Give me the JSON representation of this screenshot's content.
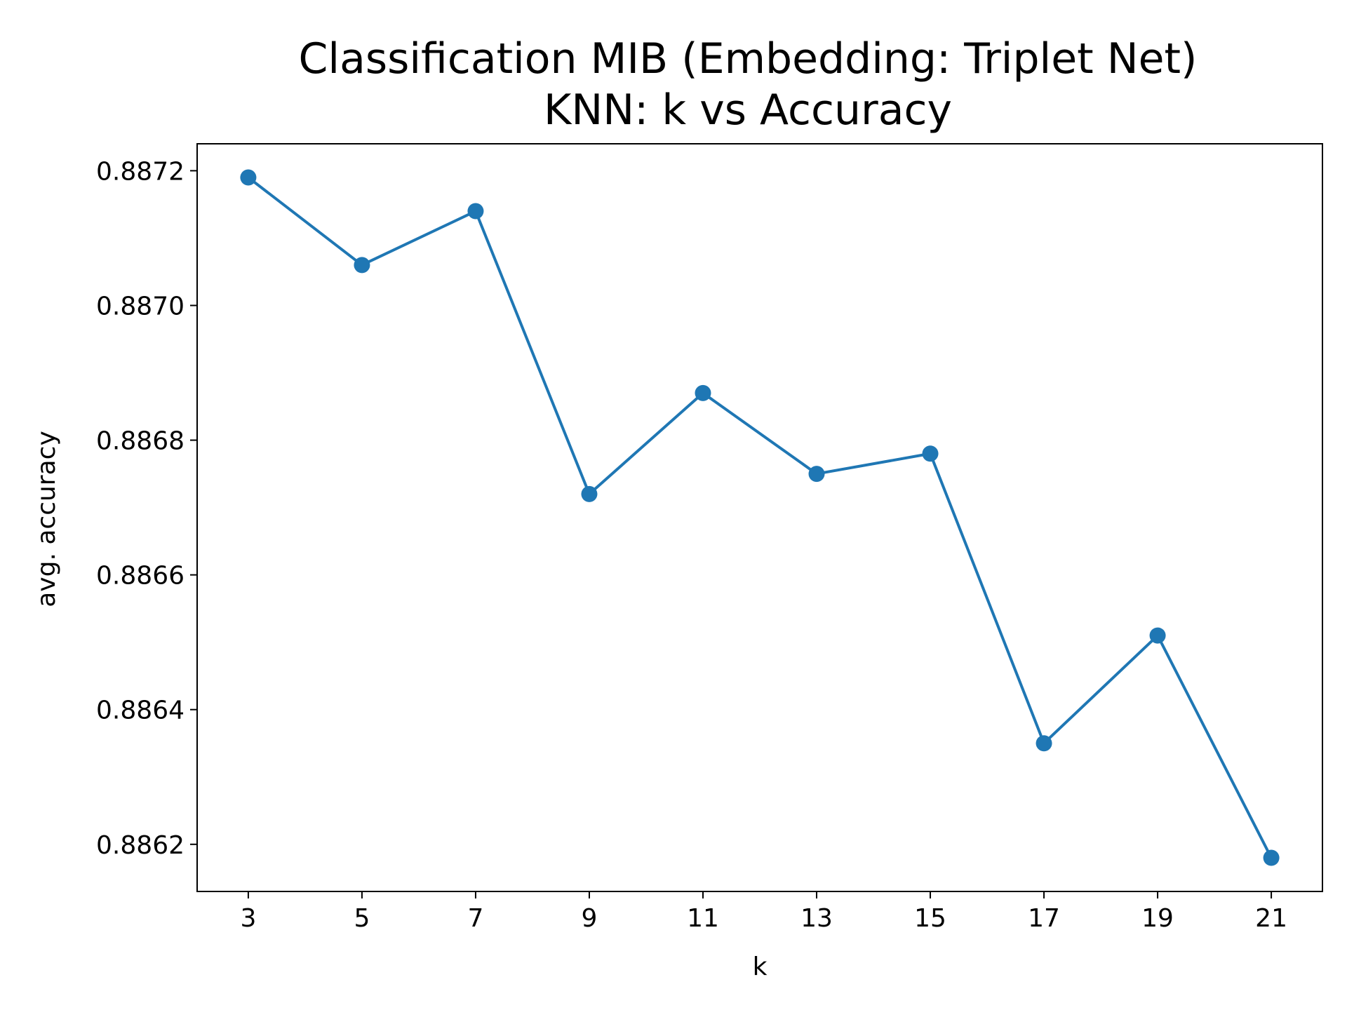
{
  "chart_data": {
    "type": "line",
    "title_line1": "Classification MIB (Embedding: Triplet Net)",
    "title_line2": "KNN: k vs  Accuracy",
    "xlabel": "k",
    "ylabel": "avg. accuracy",
    "x": [
      3,
      5,
      7,
      9,
      11,
      13,
      15,
      17,
      19,
      21
    ],
    "x_tick_labels": [
      "3",
      "5",
      "7",
      "9",
      "11",
      "13",
      "15",
      "17",
      "19",
      "21"
    ],
    "y_ticks": [
      0.8862,
      0.8864,
      0.8866,
      0.8868,
      0.887,
      0.8872
    ],
    "y_tick_labels": [
      "0.8862",
      "0.8864",
      "0.8866",
      "0.8868",
      "0.8870",
      "0.8872"
    ],
    "xlim": [
      2.1,
      21.9
    ],
    "ylim": [
      0.88613,
      0.88724
    ],
    "grid": false,
    "series": [
      {
        "color": "#1f77b4",
        "marker": "circle",
        "values": [
          0.88719,
          0.88706,
          0.88714,
          0.88672,
          0.88687,
          0.88675,
          0.88678,
          0.88635,
          0.88651,
          0.88618
        ]
      }
    ]
  }
}
